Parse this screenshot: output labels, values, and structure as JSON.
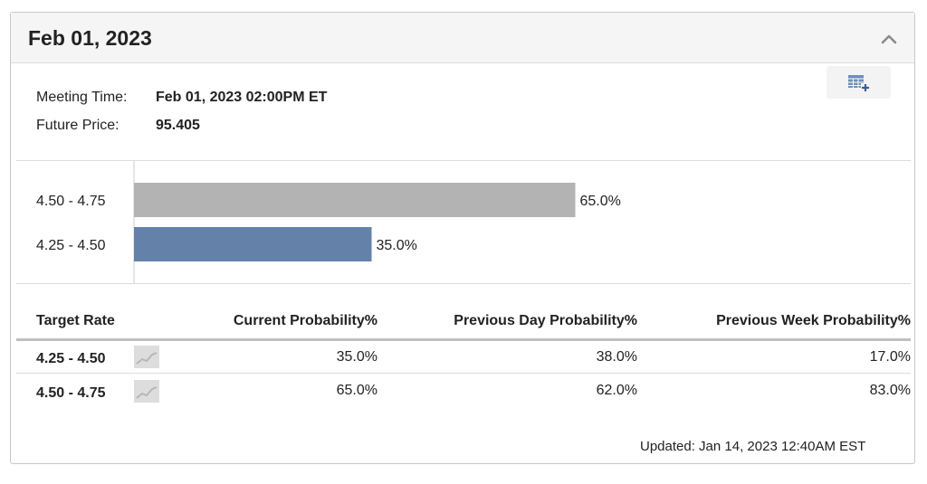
{
  "panel": {
    "title": "Feb 01, 2023",
    "collapse_icon": "chevron-up-icon",
    "export_icon": "table-add-icon"
  },
  "meeting": {
    "time_label": "Meeting Time:",
    "time_value": "Feb 01, 2023 02:00PM ET",
    "price_label": "Future Price:",
    "price_value": "95.405"
  },
  "chart_data": {
    "type": "bar",
    "orientation": "horizontal",
    "categories": [
      "4.50 - 4.75",
      "4.25 - 4.50"
    ],
    "values": [
      65.0,
      35.0
    ],
    "value_labels": [
      "65.0%",
      "35.0%"
    ],
    "colors": [
      "#b3b3b3",
      "#6482a9"
    ],
    "xlim": [
      0,
      100
    ],
    "title": "",
    "xlabel": "",
    "ylabel": "",
    "grid": false
  },
  "table": {
    "headers": [
      "Target Rate",
      "Current Probability%",
      "Previous Day Probability%",
      "Previous Week Probability%"
    ],
    "sparkline_icon": "sparkline-icon",
    "rows": [
      {
        "rate": "4.25 - 4.50",
        "current": "35.0%",
        "prev_day": "38.0%",
        "prev_week": "17.0%"
      },
      {
        "rate": "4.50 - 4.75",
        "current": "65.0%",
        "prev_day": "62.0%",
        "prev_week": "83.0%"
      }
    ]
  },
  "footer": {
    "updated": "Updated: Jan 14, 2023 12:40AM EST"
  }
}
